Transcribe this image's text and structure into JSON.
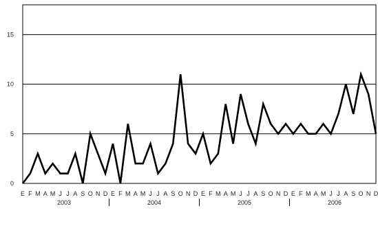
{
  "chart_data": {
    "type": "line",
    "title": "",
    "xlabel": "",
    "ylabel": "",
    "ylim": [
      0,
      18
    ],
    "y_ticks": [
      0,
      5,
      10,
      15
    ],
    "y_tick_labels": [
      "0",
      "5",
      "10",
      "15"
    ],
    "grid": "horizontal",
    "legend": "none",
    "month_labels": [
      "E",
      "F",
      "M",
      "A",
      "M",
      "J",
      "J",
      "A",
      "S",
      "O",
      "N",
      "D"
    ],
    "years": [
      {
        "label": "2003",
        "start": 0,
        "end": 12
      },
      {
        "label": "2004",
        "start": 12,
        "end": 24
      },
      {
        "label": "2005",
        "start": 24,
        "end": 36
      },
      {
        "label": "2006",
        "start": 36,
        "end": 48
      }
    ],
    "series": [
      {
        "color": "#000000",
        "values": [
          0,
          1,
          3,
          1,
          2,
          1,
          1,
          3,
          0,
          5,
          3,
          1,
          4,
          0,
          6,
          2,
          2,
          4,
          1,
          2,
          4,
          11,
          4,
          3,
          5,
          2,
          3,
          8,
          4,
          9,
          6,
          4,
          8,
          6,
          5,
          6,
          5,
          6,
          5,
          5,
          6,
          5,
          7,
          10,
          7,
          11,
          9,
          5
        ]
      }
    ]
  },
  "source_note": ""
}
